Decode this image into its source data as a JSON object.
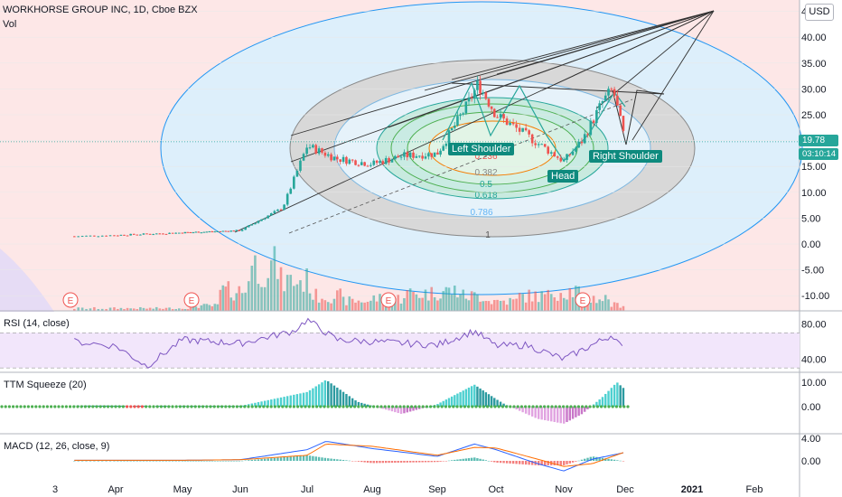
{
  "header": {
    "title": "WORKHORSE GROUP INC, 1D, Cboe BZX",
    "vol_label": "Vol",
    "currency": "USD"
  },
  "price_tag": {
    "price": "19.78",
    "countdown": "03:10:14"
  },
  "panes": {
    "rsi_label": "RSI (14, close)",
    "ttm_label": "TTM Squeeze (20)",
    "macd_label": "MACD (12, 26, close, 9)"
  },
  "pattern_labels": {
    "left_shoulder": "Left Shoulder",
    "head": "Head",
    "right_shoulder": "Right Shoulder"
  },
  "fib_levels": [
    "0.236",
    "0.382",
    "0.5",
    "0.618",
    "0.786",
    "1"
  ],
  "earnings_marker": "E",
  "colors": {
    "up": "#26a69a",
    "down": "#ef5350",
    "fib_blue": "#2196f3",
    "rsi_line": "#7e57c2",
    "macd_line": "#2962ff",
    "signal_line": "#ff6d00"
  },
  "chart_data": [
    {
      "type": "candlestick",
      "title": "WORKHORSE GROUP INC, 1D, Cboe BZX",
      "x": [
        "Mar 10",
        "Apr 1",
        "May 1",
        "Jun 1",
        "Jun 20",
        "Jul 1",
        "Jul 15",
        "Aug 1",
        "Aug 15",
        "Sep 1",
        "Sep 15",
        "Sep 22",
        "Oct 1",
        "Oct 15",
        "Nov 1",
        "Nov 10",
        "Nov 20",
        "Nov 25",
        "Dec 1"
      ],
      "values": [
        1.5,
        1.7,
        2.2,
        2.6,
        7.0,
        19.0,
        16.5,
        15.5,
        17.0,
        17.5,
        26.0,
        31.0,
        25.0,
        21.0,
        16.0,
        20.0,
        27.5,
        30.0,
        19.78
      ],
      "ylim": [
        -14,
        46
      ],
      "y_ticks": [
        "45.00",
        "40.00",
        "35.00",
        "30.00",
        "25.00",
        "20.00",
        "15.00",
        "10.00",
        "5.00",
        "0.00",
        "-5.00",
        "-10.00"
      ],
      "x_ticks": [
        "3",
        "Apr",
        "May",
        "Jun",
        "Jul",
        "Aug",
        "Sep",
        "Oct",
        "Nov",
        "Dec",
        "2021",
        "Feb"
      ],
      "last_price": 19.78,
      "volume_relative": [
        0.05,
        0.05,
        0.05,
        0.05,
        0.1,
        0.4,
        0.9,
        0.6,
        0.3,
        0.2,
        0.25,
        0.35,
        0.4,
        0.3,
        0.2,
        0.3,
        0.4,
        0.25,
        0.12
      ],
      "annotations": [
        "Left Shoulder",
        "Head",
        "Right Shoulder"
      ]
    },
    {
      "type": "line",
      "title": "RSI (14, close)",
      "x": [
        "Mar 10",
        "Apr 1",
        "Apr 15",
        "May 1",
        "Jun 1",
        "Jun 25",
        "Jul 1",
        "Jul 15",
        "Aug 1",
        "Sep 1",
        "Sep 20",
        "Oct 1",
        "Oct 15",
        "Nov 1",
        "Nov 20",
        "Nov 25",
        "Dec 1"
      ],
      "values": [
        60,
        55,
        32,
        62,
        58,
        72,
        85,
        62,
        60,
        56,
        72,
        55,
        56,
        40,
        62,
        68,
        47
      ],
      "y_ticks": [
        "80.00",
        "40.00"
      ],
      "ylim": [
        25,
        95
      ],
      "bands": [
        30,
        70
      ]
    },
    {
      "type": "bar",
      "title": "TTM Squeeze (20)",
      "x": [
        "Mar",
        "Apr",
        "May",
        "Jun",
        "Jul 1",
        "Jul 10",
        "Jul 25",
        "Aug 15",
        "Sep 1",
        "Sep 20",
        "Oct 5",
        "Oct 20",
        "Nov 1",
        "Nov 10",
        "Nov 20",
        "Nov 27",
        "Dec 1"
      ],
      "values": [
        0.5,
        0.4,
        0.3,
        0.3,
        6,
        11,
        2,
        -3,
        1,
        9,
        1,
        -5,
        -7,
        -3,
        4,
        10,
        7
      ],
      "y_ticks": [
        "10.00",
        "0.00"
      ],
      "ylim": [
        -9,
        13
      ]
    },
    {
      "type": "line",
      "title": "MACD (12, 26, close, 9)",
      "x": [
        "Mar",
        "Apr",
        "May",
        "Jun",
        "Jul 1",
        "Jul 10",
        "Aug 1",
        "Sep 1",
        "Sep 20",
        "Oct 1",
        "Oct 20",
        "Nov 1",
        "Nov 15",
        "Dec 1"
      ],
      "series": [
        {
          "values": [
            0.1,
            0.1,
            0.1,
            0.2,
            2.0,
            3.5,
            2.2,
            0.8,
            3.0,
            2.0,
            -0.5,
            -1.8,
            0.3,
            1.5
          ]
        },
        {
          "values": [
            0.1,
            0.1,
            0.1,
            0.2,
            1.0,
            3.0,
            2.6,
            1.0,
            2.4,
            2.3,
            0.3,
            -1.0,
            -0.5,
            1.6
          ]
        }
      ],
      "y_ticks": [
        "4.00",
        "0.00"
      ],
      "ylim": [
        -2.5,
        5
      ]
    }
  ]
}
